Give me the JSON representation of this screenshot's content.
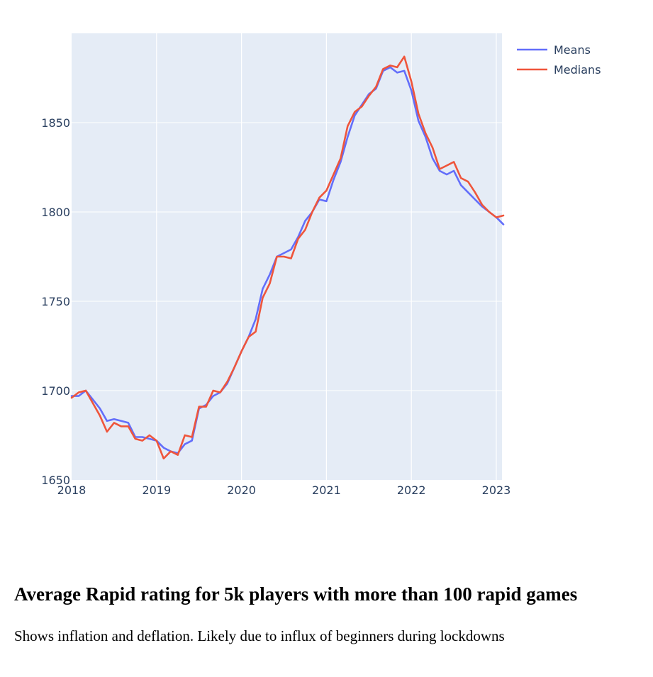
{
  "chart_data": {
    "type": "line",
    "title": "",
    "xlabel": "",
    "ylabel": "",
    "x_tick_labels": [
      "2018",
      "2019",
      "2020",
      "2021",
      "2022",
      "2023"
    ],
    "y_tick_labels": [
      "1650",
      "1700",
      "1750",
      "1800",
      "1850"
    ],
    "xlim": [
      "2018-01",
      "2023-02"
    ],
    "ylim": [
      1650,
      1900
    ],
    "grid": true,
    "legend_position": "top-right",
    "x": [
      "2018-01",
      "2018-02",
      "2018-03",
      "2018-04",
      "2018-05",
      "2018-06",
      "2018-07",
      "2018-08",
      "2018-09",
      "2018-10",
      "2018-11",
      "2018-12",
      "2019-01",
      "2019-02",
      "2019-03",
      "2019-04",
      "2019-05",
      "2019-06",
      "2019-07",
      "2019-08",
      "2019-09",
      "2019-10",
      "2019-11",
      "2019-12",
      "2020-01",
      "2020-02",
      "2020-03",
      "2020-04",
      "2020-05",
      "2020-06",
      "2020-07",
      "2020-08",
      "2020-09",
      "2020-10",
      "2020-11",
      "2020-12",
      "2021-01",
      "2021-02",
      "2021-03",
      "2021-04",
      "2021-05",
      "2021-06",
      "2021-07",
      "2021-08",
      "2021-09",
      "2021-10",
      "2021-11",
      "2021-12",
      "2022-01",
      "2022-02",
      "2022-03",
      "2022-04",
      "2022-05",
      "2022-06",
      "2022-07",
      "2022-08",
      "2022-09",
      "2022-10",
      "2022-11",
      "2022-12",
      "2023-01",
      "2023-02"
    ],
    "series": [
      {
        "name": "Means",
        "color": "#636efa",
        "values": [
          1697,
          1697,
          1700,
          1695,
          1690,
          1683,
          1684,
          1683,
          1682,
          1674,
          1674,
          1673,
          1672,
          1668,
          1666,
          1665,
          1670,
          1672,
          1690,
          1692,
          1697,
          1699,
          1704,
          1713,
          1722,
          1730,
          1740,
          1757,
          1765,
          1775,
          1777,
          1779,
          1786,
          1795,
          1800,
          1807,
          1806,
          1818,
          1828,
          1842,
          1854,
          1860,
          1866,
          1869,
          1879,
          1881,
          1878,
          1879,
          1868,
          1851,
          1842,
          1830,
          1823,
          1821,
          1823,
          1815,
          1811,
          1807,
          1803,
          1800,
          1797,
          1793
        ]
      },
      {
        "name": "Medians",
        "color": "#ef553b",
        "values": [
          1696,
          1699,
          1700,
          1693,
          1686,
          1677,
          1682,
          1680,
          1680,
          1673,
          1672,
          1675,
          1672,
          1662,
          1666,
          1664,
          1675,
          1674,
          1691,
          1691,
          1700,
          1699,
          1705,
          1713,
          1722,
          1730,
          1733,
          1752,
          1760,
          1775,
          1775,
          1774,
          1785,
          1790,
          1800,
          1808,
          1812,
          1821,
          1830,
          1848,
          1856,
          1859,
          1865,
          1870,
          1880,
          1882,
          1881,
          1887,
          1873,
          1855,
          1844,
          1836,
          1824,
          1826,
          1828,
          1819,
          1817,
          1811,
          1804,
          1800,
          1797,
          1798
        ]
      }
    ]
  },
  "caption": {
    "title": "Average Rapid rating for 5k players with more than 100 rapid games",
    "description": "Shows inflation and deflation. Likely due to influx of beginners during lockdowns"
  }
}
